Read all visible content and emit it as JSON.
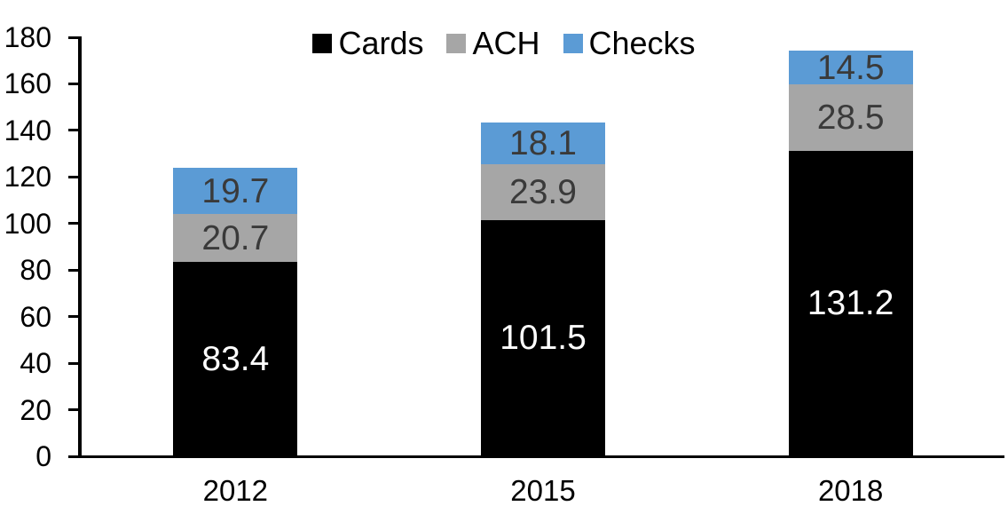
{
  "chart_data": {
    "type": "bar",
    "stacked": true,
    "title": "",
    "xlabel": "",
    "ylabel": "",
    "categories": [
      "2012",
      "2015",
      "2018"
    ],
    "series": [
      {
        "name": "Cards",
        "color": "#000000",
        "label_color": "#ffffff",
        "values": [
          83.4,
          101.5,
          131.2
        ]
      },
      {
        "name": "ACH",
        "color": "#a6a6a6",
        "label_color": "#3a3a3a",
        "values": [
          20.7,
          23.9,
          28.5
        ]
      },
      {
        "name": "Checks",
        "color": "#5b9bd5",
        "label_color": "#3a3a3a",
        "values": [
          19.7,
          18.1,
          14.5
        ]
      }
    ],
    "totals": [
      123.8,
      143.5,
      174.2
    ],
    "ylim": [
      0,
      180
    ],
    "yticks": [
      0,
      20,
      40,
      60,
      80,
      100,
      120,
      140,
      160,
      180
    ],
    "grid": false,
    "data_labels": true,
    "legend_position": "top",
    "legend_labels": [
      "Cards",
      "ACH",
      "Checks"
    ]
  },
  "colors": {
    "background": "#ffffff",
    "axis": "#000000",
    "tick_label": "#000000"
  }
}
